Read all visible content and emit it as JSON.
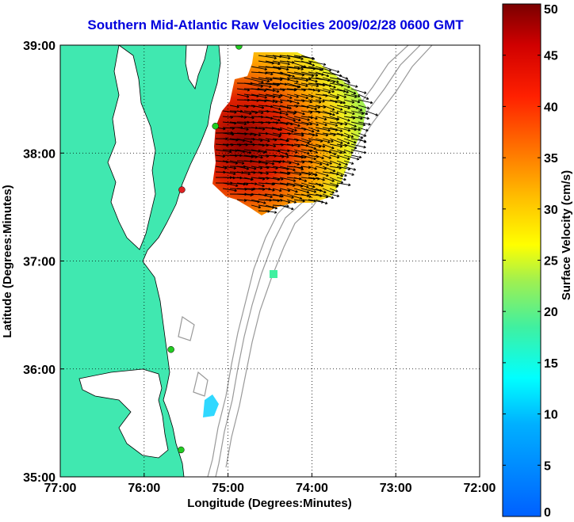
{
  "title": "Southern Mid-Atlantic Raw Velocities 2009/02/28 0600 GMT",
  "map": {
    "xlabel": "Longitude (Degrees:Minutes)",
    "ylabel": "Latitude (Degrees:Minutes)",
    "lon_range": [
      -77,
      -72
    ],
    "lat_range": [
      35,
      39
    ],
    "lon_ticks": [
      {
        "value": -77,
        "label": "77:00"
      },
      {
        "value": -76,
        "label": "76:00"
      },
      {
        "value": -75,
        "label": "75:00"
      },
      {
        "value": -74,
        "label": "74:00"
      },
      {
        "value": -73,
        "label": "73:00"
      },
      {
        "value": -72,
        "label": "72:00"
      }
    ],
    "lat_ticks": [
      {
        "value": 35,
        "label": "35:00"
      },
      {
        "value": 36,
        "label": "36:00"
      },
      {
        "value": 37,
        "label": "37:00"
      },
      {
        "value": 38,
        "label": "38:00"
      },
      {
        "value": 39,
        "label": "39:00"
      }
    ],
    "grid": "dotted",
    "land_color": "#40e8b0",
    "water_color": "#ffffff",
    "bathymetry_color": "#999999",
    "vector_color": "#000000",
    "radar_sites": [
      {
        "lon": -74.87,
        "lat": 38.99,
        "color": "#22cc22"
      },
      {
        "lon": -75.15,
        "lat": 38.25,
        "color": "#22cc22"
      },
      {
        "lon": -75.55,
        "lat": 37.66,
        "color": "#dd2222"
      },
      {
        "lon": -75.68,
        "lat": 36.18,
        "color": "#22cc22"
      },
      {
        "lon": -75.56,
        "lat": 35.25,
        "color": "#22cc22"
      }
    ]
  },
  "colorbar": {
    "label": "Surface Velocity (cm/s)",
    "min": 0,
    "max": 50,
    "ticks": [
      "0",
      "5",
      "10",
      "15",
      "20",
      "25",
      "30",
      "35",
      "40",
      "45",
      "50"
    ]
  }
}
